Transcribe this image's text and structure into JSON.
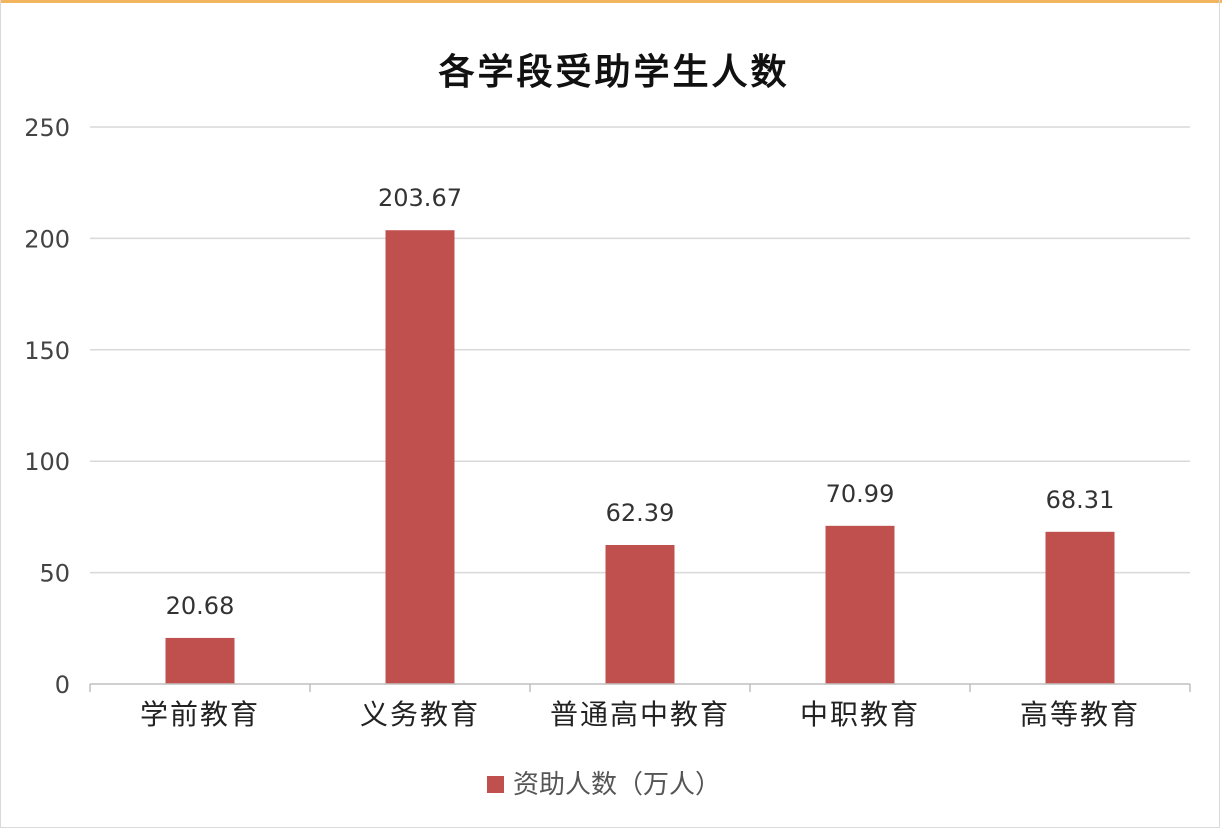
{
  "chart_data": {
    "type": "bar",
    "title": "各学段受助学生人数",
    "categories": [
      "学前教育",
      "义务教育",
      "普通高中教育",
      "中职教育",
      "高等教育"
    ],
    "series": [
      {
        "name": "资助人数（万人）",
        "values": [
          20.68,
          203.67,
          62.39,
          70.99,
          68.31
        ],
        "color": "#c0504d"
      }
    ],
    "value_labels": [
      "20.68",
      "203.67",
      "62.39",
      "70.99",
      "68.31"
    ],
    "ylim": [
      0,
      250
    ],
    "yticks": [
      0,
      50,
      100,
      150,
      200,
      250
    ],
    "grid": true,
    "legend_position": "bottom"
  }
}
